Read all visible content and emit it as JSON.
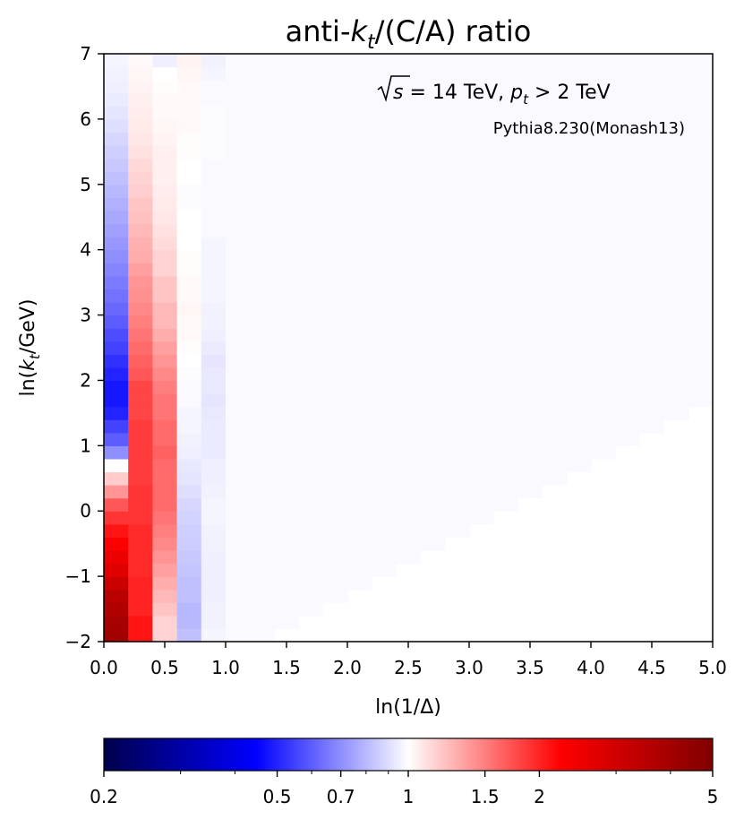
{
  "chart_data": {
    "type": "heatmap",
    "title": "anti-kₜ/(C/A) ratio",
    "title_parts": [
      "anti-",
      "k",
      "t",
      "/(C/A) ratio"
    ],
    "xlabel": "ln(1/Δ)",
    "ylabel": "ln(kₜ/GeV)",
    "ylabel_parts": [
      "ln(",
      "k",
      "t",
      "/GeV)"
    ],
    "xlim": [
      0,
      5
    ],
    "ylim": [
      -2,
      7
    ],
    "x_ticks": [
      "0.0",
      "0.5",
      "1.0",
      "1.5",
      "2.0",
      "2.5",
      "3.0",
      "3.5",
      "4.0",
      "4.5",
      "5.0"
    ],
    "y_ticks": [
      "−2",
      "−1",
      "0",
      "1",
      "2",
      "3",
      "4",
      "5",
      "6",
      "7"
    ],
    "annotations": {
      "energy": "√s = 14 TeV, pₜ > 2 TeV",
      "energy_parts": [
        "s",
        " = 14 TeV, ",
        "p",
        "t",
        " > 2 TeV"
      ],
      "generator": "Pythia8.230(Monash13)"
    },
    "bin_width": 0.2,
    "bin_height": 0.2,
    "default_ratio": 0.98,
    "columns": [
      {
        "x0": 0.0,
        "lowestFilled": 0,
        "ratios": [
          4.0,
          3.9,
          3.7,
          3.5,
          3.1,
          2.7,
          2.5,
          2.3,
          2.1,
          1.9,
          1.7,
          1.4,
          1.18,
          1.0,
          0.7,
          0.6,
          0.55,
          0.5,
          0.48,
          0.48,
          0.5,
          0.52,
          0.55,
          0.57,
          0.6,
          0.62,
          0.64,
          0.66,
          0.68,
          0.7,
          0.72,
          0.74,
          0.76,
          0.78,
          0.8,
          0.82,
          0.84,
          0.86,
          0.88,
          0.9,
          0.92,
          0.94,
          0.95,
          0.96,
          0.97
        ]
      },
      {
        "x0": 0.2,
        "lowestFilled": 0,
        "ratios": [
          2.1,
          2.1,
          2.0,
          2.0,
          2.0,
          1.95,
          1.95,
          1.95,
          1.95,
          1.9,
          1.9,
          1.9,
          1.85,
          1.85,
          1.85,
          1.85,
          1.85,
          1.8,
          1.8,
          1.8,
          1.7,
          1.65,
          1.6,
          1.55,
          1.5,
          1.45,
          1.42,
          1.4,
          1.35,
          1.3,
          1.28,
          1.25,
          1.22,
          1.2,
          1.17,
          1.15,
          1.13,
          1.1,
          1.08,
          1.07,
          1.06,
          1.05,
          1.04,
          1.03,
          1.02
        ]
      },
      {
        "x0": 0.4,
        "lowestFilled": 0,
        "ratios": [
          1.15,
          1.15,
          1.2,
          1.25,
          1.3,
          1.35,
          1.4,
          1.45,
          1.5,
          1.55,
          1.6,
          1.6,
          1.6,
          1.6,
          1.65,
          1.6,
          1.6,
          1.55,
          1.55,
          1.5,
          1.45,
          1.4,
          1.35,
          1.3,
          1.25,
          1.25,
          1.2,
          1.2,
          1.15,
          1.15,
          1.12,
          1.1,
          1.08,
          1.07,
          1.06,
          1.05,
          1.05,
          1.05,
          1.04,
          1.03,
          1.02,
          1.02,
          1.01,
          1.0,
          0.95
        ]
      },
      {
        "x0": 0.6,
        "lowestFilled": 0,
        "ratios": [
          0.82,
          0.8,
          0.8,
          0.82,
          0.82,
          0.83,
          0.84,
          0.85,
          0.86,
          0.87,
          0.88,
          0.9,
          0.92,
          0.93,
          0.95,
          0.96,
          0.97,
          0.97,
          0.98,
          0.98,
          0.99,
          1.0,
          1.01,
          1.02,
          1.02,
          1.03,
          1.02,
          1.02,
          1.01,
          1.01,
          1.0,
          1.0,
          1.0,
          0.99,
          0.99,
          1.0,
          1.0,
          1.01,
          1.01,
          1.02,
          1.02,
          1.02,
          1.02,
          1.03,
          1.04
        ]
      },
      {
        "x0": 0.8,
        "lowestFilled": 0,
        "ratios": [
          0.97,
          0.96,
          0.96,
          0.95,
          0.95,
          0.95,
          0.95,
          0.96,
          0.96,
          0.97,
          0.97,
          0.96,
          0.95,
          0.95,
          0.94,
          0.94,
          0.94,
          0.93,
          0.92,
          0.93,
          0.93,
          0.92,
          0.94,
          0.95,
          0.96,
          0.96,
          0.97,
          0.97,
          0.97,
          0.97,
          0.97,
          0.98,
          0.98,
          0.98,
          0.98,
          0.98,
          0.98,
          0.99,
          0.99,
          0.99,
          0.99,
          0.98,
          0.98,
          0.97,
          0.96
        ]
      },
      {
        "x0": 1.0,
        "lowestFilled": 0
      },
      {
        "x0": 1.2,
        "lowestFilled": 0
      },
      {
        "x0": 1.4,
        "lowestFilled": 1
      },
      {
        "x0": 1.6,
        "lowestFilled": 2
      },
      {
        "x0": 1.8,
        "lowestFilled": 3
      },
      {
        "x0": 2.0,
        "lowestFilled": 4
      },
      {
        "x0": 2.2,
        "lowestFilled": 5
      },
      {
        "x0": 2.4,
        "lowestFilled": 6
      },
      {
        "x0": 2.6,
        "lowestFilled": 7
      },
      {
        "x0": 2.8,
        "lowestFilled": 8
      },
      {
        "x0": 3.0,
        "lowestFilled": 9
      },
      {
        "x0": 3.2,
        "lowestFilled": 10
      },
      {
        "x0": 3.4,
        "lowestFilled": 11
      },
      {
        "x0": 3.6,
        "lowestFilled": 12
      },
      {
        "x0": 3.8,
        "lowestFilled": 13
      },
      {
        "x0": 4.0,
        "lowestFilled": 14
      },
      {
        "x0": 4.2,
        "lowestFilled": 15
      },
      {
        "x0": 4.4,
        "lowestFilled": 16
      },
      {
        "x0": 4.6,
        "lowestFilled": 17
      },
      {
        "x0": 4.8,
        "lowestFilled": 18
      }
    ],
    "colorbar": {
      "scale": "log",
      "colormap": "seismic",
      "range": [
        0.2,
        5
      ],
      "ticks": [
        {
          "value": 0.2,
          "label": "0.2"
        },
        {
          "value": 0.5,
          "label": "0.5"
        },
        {
          "value": 0.7,
          "label": "0.7"
        },
        {
          "value": 1,
          "label": "1"
        },
        {
          "value": 1.5,
          "label": "1.5"
        },
        {
          "value": 2,
          "label": "2"
        },
        {
          "value": 5,
          "label": "5"
        }
      ],
      "minor_ticks": [
        0.3,
        0.4,
        0.6,
        0.8,
        0.9,
        3,
        4
      ]
    }
  }
}
